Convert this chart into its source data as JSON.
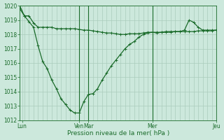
{
  "xlabel": "Pression niveau de la mer( hPa )",
  "background_color": "#cce8dc",
  "line_color": "#1a6b2a",
  "grid_color": "#aaccbc",
  "ylim": [
    1012,
    1020
  ],
  "yticks": [
    1012,
    1013,
    1014,
    1015,
    1016,
    1017,
    1018,
    1019,
    1020
  ],
  "xlim_min": 0,
  "xlim_max": 43,
  "xtick_positions": [
    0.5,
    13,
    15,
    29,
    43
  ],
  "xtick_labels": [
    "Lun",
    "Ven",
    "Mar",
    "Mer",
    "Jeu"
  ],
  "vline_positions": [
    13,
    15,
    29,
    43
  ],
  "series1_x": [
    0,
    1,
    2,
    3,
    4,
    5,
    6,
    7,
    8,
    9,
    10,
    11,
    12,
    13,
    14,
    15,
    16,
    17,
    18,
    19,
    20,
    21,
    22,
    23,
    24,
    25,
    26,
    27,
    28,
    29,
    30,
    31,
    32,
    33,
    34,
    35,
    36,
    37,
    38,
    39,
    40,
    41,
    42,
    43
  ],
  "series1_y": [
    1019.8,
    1019.3,
    1019.3,
    1018.8,
    1018.5,
    1018.5,
    1018.5,
    1018.5,
    1018.4,
    1018.4,
    1018.4,
    1018.4,
    1018.4,
    1018.35,
    1018.3,
    1018.3,
    1018.25,
    1018.2,
    1018.15,
    1018.1,
    1018.1,
    1018.05,
    1018.0,
    1018.0,
    1018.05,
    1018.05,
    1018.05,
    1018.1,
    1018.15,
    1018.15,
    1018.15,
    1018.15,
    1018.15,
    1018.15,
    1018.2,
    1018.2,
    1018.2,
    1018.2,
    1018.2,
    1018.25,
    1018.25,
    1018.25,
    1018.25,
    1018.3
  ],
  "series2_x": [
    0,
    1,
    2,
    3,
    4,
    5,
    6,
    7,
    8,
    9,
    10,
    11,
    12,
    13,
    14,
    15,
    16,
    17,
    18,
    19,
    20,
    21,
    22,
    23,
    24,
    25,
    26,
    27,
    28,
    29,
    30,
    31,
    32,
    33,
    34,
    35,
    36,
    37,
    38,
    39,
    40,
    41,
    42,
    43
  ],
  "series2_y": [
    1020.0,
    1019.3,
    1018.9,
    1018.5,
    1017.2,
    1016.1,
    1015.6,
    1014.8,
    1014.2,
    1013.5,
    1013.1,
    1012.7,
    1012.5,
    1012.5,
    1013.3,
    1013.8,
    1013.85,
    1014.2,
    1014.8,
    1015.3,
    1015.8,
    1016.2,
    1016.6,
    1017.0,
    1017.3,
    1017.5,
    1017.8,
    1018.0,
    1018.1,
    1018.15,
    1018.1,
    1018.15,
    1018.2,
    1018.2,
    1018.2,
    1018.2,
    1018.3,
    1019.0,
    1018.85,
    1018.5,
    1018.3,
    1018.3,
    1018.3,
    1018.3
  ]
}
